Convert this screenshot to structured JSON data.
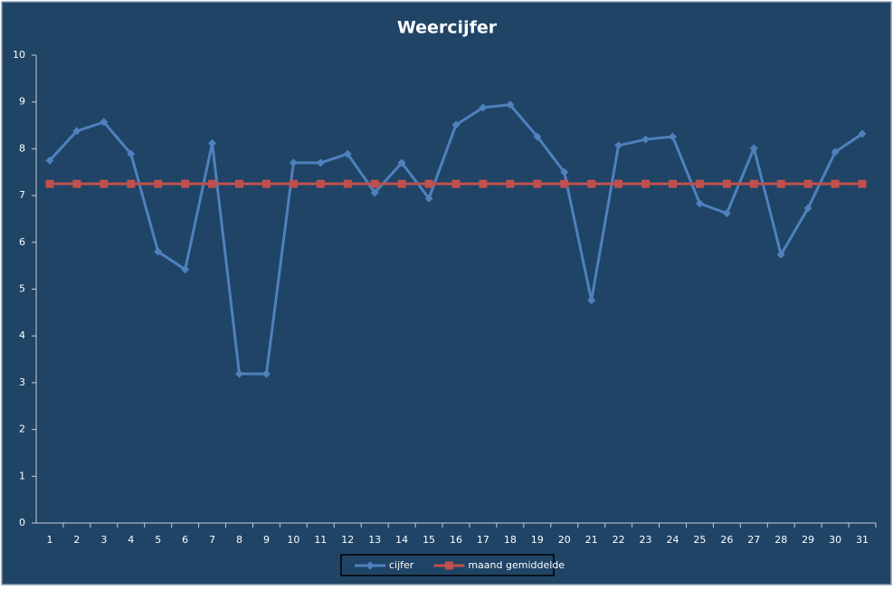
{
  "chart_data": {
    "type": "line",
    "title": "Weercijfer",
    "categories": [
      "1",
      "2",
      "3",
      "4",
      "5",
      "6",
      "7",
      "8",
      "9",
      "10",
      "11",
      "12",
      "13",
      "14",
      "15",
      "16",
      "17",
      "18",
      "19",
      "20",
      "21",
      "22",
      "23",
      "24",
      "25",
      "26",
      "27",
      "28",
      "29",
      "30",
      "31"
    ],
    "series": [
      {
        "name": "cijfer",
        "color": "#4f81bd",
        "marker": "diamond",
        "values": [
          7.75,
          8.38,
          8.57,
          7.89,
          5.8,
          5.42,
          8.12,
          3.19,
          3.19,
          7.7,
          7.7,
          7.89,
          7.06,
          7.7,
          6.94,
          8.51,
          8.88,
          8.94,
          8.26,
          7.5,
          4.76,
          8.07,
          8.2,
          8.26,
          6.83,
          6.62,
          8.01,
          5.74,
          6.73,
          7.93,
          8.32
        ]
      },
      {
        "name": "maand gemiddelde",
        "color": "#c0504d",
        "marker": "square",
        "values": [
          7.25,
          7.25,
          7.25,
          7.25,
          7.25,
          7.25,
          7.25,
          7.25,
          7.25,
          7.25,
          7.25,
          7.25,
          7.25,
          7.25,
          7.25,
          7.25,
          7.25,
          7.25,
          7.25,
          7.25,
          7.25,
          7.25,
          7.25,
          7.25,
          7.25,
          7.25,
          7.25,
          7.25,
          7.25,
          7.25,
          7.25
        ]
      }
    ],
    "ylim": [
      0,
      10
    ],
    "yticks": [
      0,
      1,
      2,
      3,
      4,
      5,
      6,
      7,
      8,
      9,
      10
    ],
    "grid": false,
    "legend": "bottom"
  }
}
